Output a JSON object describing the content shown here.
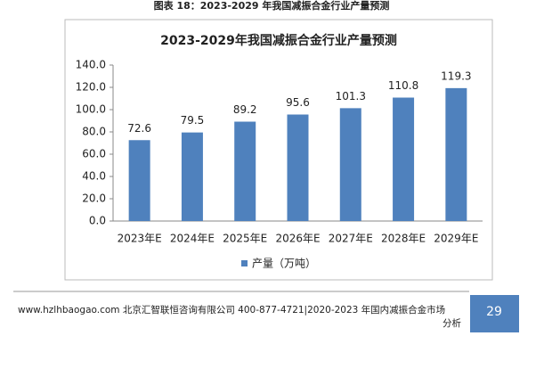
{
  "caption": "图表 18：2023-2029 年我国减振合金行业产量预测",
  "chart_data": {
    "type": "bar",
    "title": "2023-2029年我国减振合金行业产量预测",
    "categories": [
      "2023年E",
      "2024年E",
      "2025年E",
      "2026年E",
      "2027年E",
      "2028年E",
      "2029年E"
    ],
    "series": [
      {
        "name": "产量（万吨）",
        "color": "#4f81bd",
        "values": [
          72.6,
          79.5,
          89.2,
          95.6,
          101.3,
          110.8,
          119.3
        ]
      }
    ],
    "ylim": [
      0,
      140
    ],
    "yticks": [
      {
        "value": 0,
        "label": "0.0"
      },
      {
        "value": 20,
        "label": "20.0"
      },
      {
        "value": 40,
        "label": "40.0"
      },
      {
        "value": 60,
        "label": "60.0"
      },
      {
        "value": 80,
        "label": "80.0"
      },
      {
        "value": 100,
        "label": "100.0"
      },
      {
        "value": 120,
        "label": "120.0"
      },
      {
        "value": 140,
        "label": "140.0"
      }
    ],
    "grid": false,
    "legend": "bottom"
  },
  "footer": {
    "line1": "www.hzlhbaogao.com 北京汇智联恒咨询有限公司  400-877-4721|2020-2023 年国内减振合金市场",
    "line2": "分析",
    "page": "29"
  }
}
